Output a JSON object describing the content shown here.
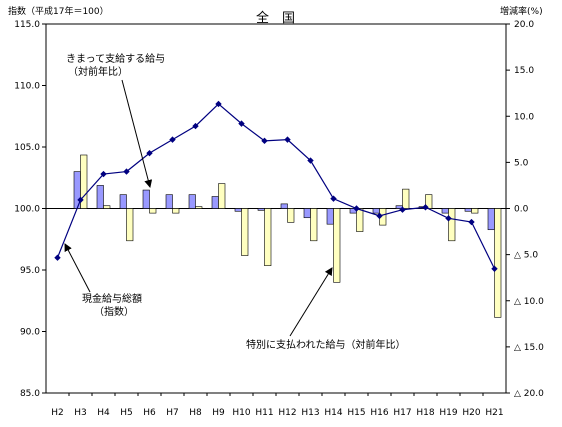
{
  "chart_data": {
    "type": "bar+line",
    "title": "全　国",
    "ylabel_left": "指数（平成17年＝100）",
    "ylabel_right": "増減率(%)",
    "categories": [
      "H2",
      "H3",
      "H4",
      "H5",
      "H6",
      "H7",
      "H8",
      "H9",
      "H10",
      "H11",
      "H12",
      "H13",
      "H14",
      "H15",
      "H16",
      "H17",
      "H18",
      "H19",
      "H20",
      "H21"
    ],
    "left_axis": {
      "min": 85,
      "max": 115,
      "step": 5,
      "tick_labels": [
        "85.0",
        "90.0",
        "95.0",
        "100.0",
        "105.0",
        "110.0",
        "115.0"
      ]
    },
    "right_axis": {
      "min": -20,
      "max": 20,
      "step": 5,
      "tick_labels": [
        "△ 20.0",
        "△ 15.0",
        "△ 10.0",
        "△ 5.0",
        "0.0",
        "5.0",
        "10.0",
        "15.0",
        "20.0"
      ]
    },
    "series": [
      {
        "name": "現金給与総額（指数）",
        "kind": "line",
        "axis": "left",
        "color": "#000080",
        "values": [
          96.0,
          100.7,
          102.8,
          103.0,
          104.5,
          105.6,
          106.7,
          108.5,
          106.9,
          105.5,
          105.6,
          103.9,
          100.8,
          100.0,
          99.4,
          99.9,
          100.1,
          99.2,
          98.9,
          95.1
        ]
      },
      {
        "name": "きまって支給する給与（対前年比）",
        "kind": "bar",
        "axis": "right",
        "color": "#9999ff",
        "values": [
          null,
          4.0,
          2.5,
          1.5,
          2.0,
          1.5,
          1.5,
          1.3,
          -0.3,
          -0.2,
          0.5,
          -1.0,
          -1.7,
          -0.5,
          -0.5,
          0.3,
          0.2,
          -0.5,
          -0.3,
          -2.3
        ]
      },
      {
        "name": "特別に支払われた給与（対前年比）",
        "kind": "bar",
        "axis": "right",
        "color": "#ffffc0",
        "values": [
          null,
          5.8,
          0.3,
          -3.5,
          -0.5,
          -0.5,
          0.2,
          2.7,
          -5.1,
          -6.2,
          -1.5,
          -3.5,
          -8.0,
          -2.5,
          -1.8,
          2.1,
          1.5,
          -3.5,
          -0.5,
          -11.8
        ]
      }
    ],
    "annotations": [
      {
        "text": "きまって支給する給与",
        "sub": "（対前年比）"
      },
      {
        "text": "現金給与総額",
        "sub": "（指数）"
      },
      {
        "text": "特別に支払われた給与（対前年比）"
      }
    ],
    "grid": false,
    "legend": "none"
  }
}
